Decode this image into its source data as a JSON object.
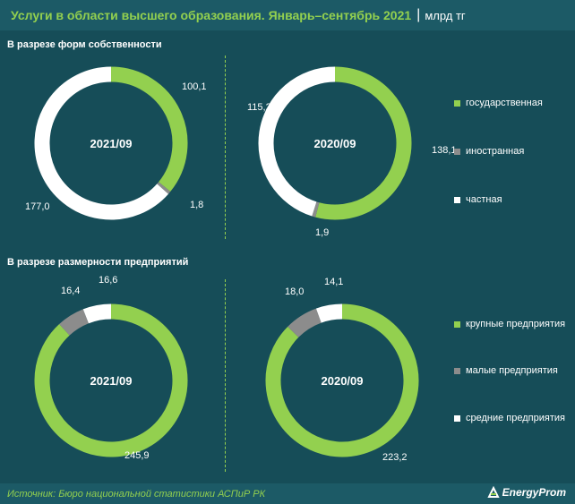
{
  "header": {
    "title": "Услуги в области высшего образования. Январь–сентябрь 2021",
    "separator": "|",
    "unit": "млрд тг"
  },
  "sections": [
    {
      "title": "В разрезе форм собственности",
      "legend": [
        {
          "label": "государственная",
          "color": "#93d04f"
        },
        {
          "label": "иностранная",
          "color": "#8c8c8c"
        },
        {
          "label": "частная",
          "color": "#ffffff"
        }
      ]
    },
    {
      "title": "В разрезе размерности предприятий",
      "legend": [
        {
          "label": "крупные предприятия",
          "color": "#93d04f"
        },
        {
          "label": "малые предприятия",
          "color": "#8c8c8c"
        },
        {
          "label": "средние предприятия",
          "color": "#ffffff"
        }
      ]
    }
  ],
  "chart_data": [
    {
      "type": "pie",
      "center_label": "2021/09",
      "series": [
        {
          "name": "государственная",
          "value": 100.1,
          "label": "100,1",
          "color": "#93d04f"
        },
        {
          "name": "иностранная",
          "value": 1.8,
          "label": "1,8",
          "color": "#8c8c8c"
        },
        {
          "name": "частная",
          "value": 177.0,
          "label": "177,0",
          "color": "#ffffff"
        }
      ]
    },
    {
      "type": "pie",
      "center_label": "2020/09",
      "series": [
        {
          "name": "государственная",
          "value": 138.1,
          "label": "138,1",
          "color": "#93d04f"
        },
        {
          "name": "иностранная",
          "value": 1.9,
          "label": "1,9",
          "color": "#8c8c8c"
        },
        {
          "name": "частная",
          "value": 115.2,
          "label": "115,2",
          "color": "#ffffff"
        }
      ]
    },
    {
      "type": "pie",
      "center_label": "2021/09",
      "series": [
        {
          "name": "крупные предприятия",
          "value": 245.9,
          "label": "245,9",
          "color": "#93d04f"
        },
        {
          "name": "малые предприятия",
          "value": 16.4,
          "label": "16,4",
          "color": "#8c8c8c"
        },
        {
          "name": "средние предприятия",
          "value": 16.6,
          "label": "16,6",
          "color": "#ffffff"
        }
      ]
    },
    {
      "type": "pie",
      "center_label": "2020/09",
      "series": [
        {
          "name": "крупные предприятия",
          "value": 223.2,
          "label": "223,2",
          "color": "#93d04f"
        },
        {
          "name": "малые предприятия",
          "value": 18.0,
          "label": "18,0",
          "color": "#8c8c8c"
        },
        {
          "name": "средние предприятия",
          "value": 14.1,
          "label": "14,1",
          "color": "#ffffff"
        }
      ]
    }
  ],
  "footer": {
    "source": "Источник: Бюро национальной статистики АСПиР РК",
    "logo": "EnergyProm"
  }
}
